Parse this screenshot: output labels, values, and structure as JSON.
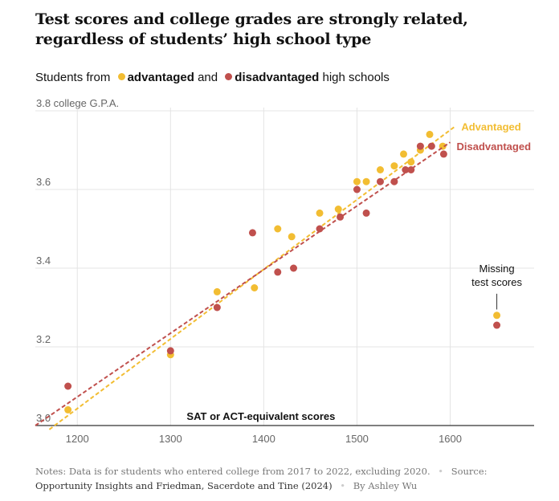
{
  "header": {
    "title": "Test scores and college grades are strongly related, regardless of students’ high school type"
  },
  "legend": {
    "prefix": "Students from",
    "advantaged": "advantaged",
    "and": "and",
    "disadvantaged": "disadvantaged",
    "suffix": "high schools"
  },
  "footer": {
    "notes_label": "Notes:",
    "notes": "Data is for students who entered college from 2017 to 2022, excluding 2020.",
    "source_label": "Source:",
    "source": "Opportunity Insights and Friedman, Sacerdote and Tine (2024)",
    "byline": "By Ashley Wu"
  },
  "chart_data": {
    "type": "scatter",
    "title": "Test scores and college grades are strongly related, regardless of students’ high school type",
    "xlabel": "SAT or ACT-equivalent scores",
    "ylabel": "college G.P.A.",
    "xlim": [
      1155,
      1690
    ],
    "ylim": [
      3.0,
      3.8
    ],
    "xticks": [
      1200,
      1300,
      1400,
      1500,
      1600
    ],
    "yticks": [
      3.0,
      3.2,
      3.4,
      3.6,
      3.8
    ],
    "ytick_labels": [
      "3.0",
      "3.2",
      "3.4",
      "3.6",
      "3.8 college G.P.A."
    ],
    "colors": {
      "advantaged": "#f2bd32",
      "disadvantaged": "#c0504d"
    },
    "series": [
      {
        "name": "advantaged",
        "label": "Advantaged",
        "color": "#f2bd32",
        "points": [
          [
            1190,
            3.04
          ],
          [
            1300,
            3.18
          ],
          [
            1350,
            3.34
          ],
          [
            1390,
            3.35
          ],
          [
            1415,
            3.5
          ],
          [
            1430,
            3.48
          ],
          [
            1460,
            3.54
          ],
          [
            1480,
            3.55
          ],
          [
            1500,
            3.62
          ],
          [
            1510,
            3.62
          ],
          [
            1525,
            3.65
          ],
          [
            1540,
            3.66
          ],
          [
            1550,
            3.69
          ],
          [
            1558,
            3.67
          ],
          [
            1568,
            3.7
          ],
          [
            1578,
            3.74
          ],
          [
            1592,
            3.71
          ]
        ],
        "trend": [
          [
            1170,
            2.99
          ],
          [
            1605,
            3.76
          ]
        ]
      },
      {
        "name": "disadvantaged",
        "label": "Disadvantaged",
        "color": "#c0504d",
        "points": [
          [
            1190,
            3.1
          ],
          [
            1300,
            3.19
          ],
          [
            1350,
            3.3
          ],
          [
            1388,
            3.49
          ],
          [
            1415,
            3.39
          ],
          [
            1432,
            3.4
          ],
          [
            1460,
            3.5
          ],
          [
            1482,
            3.53
          ],
          [
            1500,
            3.6
          ],
          [
            1510,
            3.54
          ],
          [
            1525,
            3.62
          ],
          [
            1540,
            3.62
          ],
          [
            1552,
            3.65
          ],
          [
            1558,
            3.65
          ],
          [
            1568,
            3.71
          ],
          [
            1580,
            3.71
          ],
          [
            1593,
            3.69
          ]
        ],
        "trend": [
          [
            1155,
            3.0
          ],
          [
            1600,
            3.72
          ]
        ]
      }
    ],
    "missing": {
      "label_line1": "Missing",
      "label_line2": "test scores",
      "x": 1650,
      "advantaged": 3.28,
      "disadvantaged": 3.255
    }
  }
}
